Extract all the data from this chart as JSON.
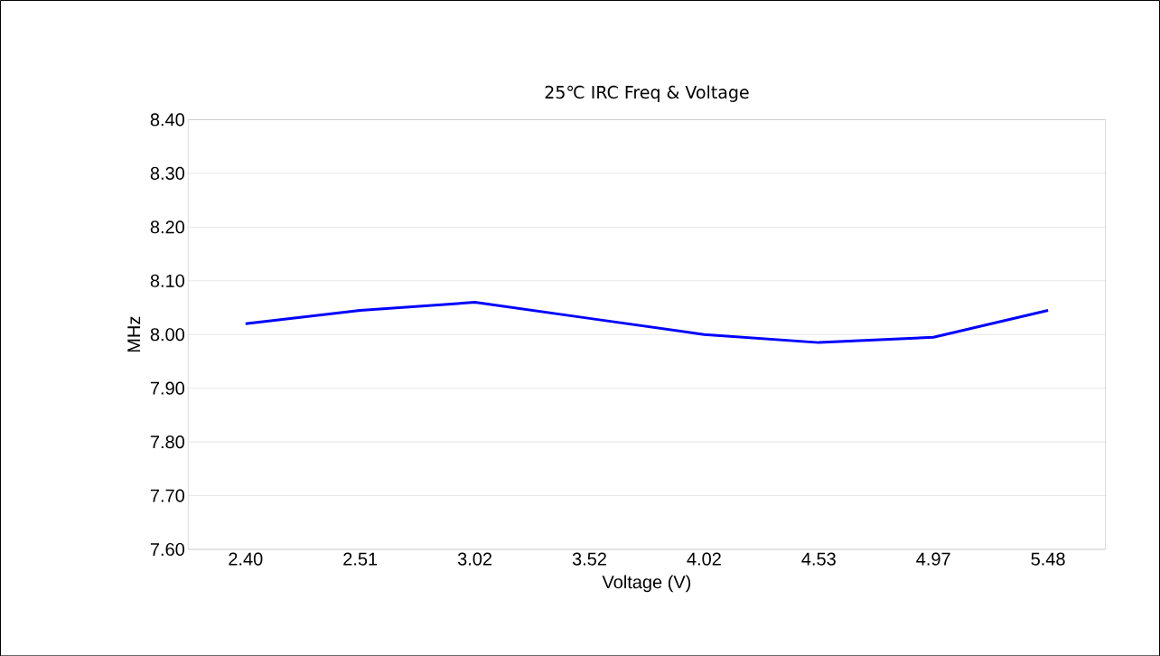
{
  "chart_data": {
    "type": "line",
    "title": "25℃ IRC Freq & Voltage",
    "xlabel": "Voltage (V)",
    "ylabel": "MHz",
    "categories": [
      "2.40",
      "2.51",
      "3.02",
      "3.52",
      "4.02",
      "4.53",
      "4.97",
      "5.48"
    ],
    "series": [
      {
        "color": "#0000ff",
        "values": [
          8.02,
          8.045,
          8.06,
          8.03,
          8.0,
          7.985,
          7.995,
          8.045
        ]
      }
    ],
    "ylim": [
      7.6,
      8.4
    ],
    "yticks": [
      {
        "value": 7.6,
        "label": "7.60"
      },
      {
        "value": 7.7,
        "label": "7.70"
      },
      {
        "value": 7.8,
        "label": "7.80"
      },
      {
        "value": 7.9,
        "label": "7.90"
      },
      {
        "value": 8.0,
        "label": "8.00"
      },
      {
        "value": 8.1,
        "label": "8.10"
      },
      {
        "value": 8.2,
        "label": "8.20"
      },
      {
        "value": 8.3,
        "label": "8.30"
      },
      {
        "value": 8.4,
        "label": "8.40"
      }
    ],
    "grid": "y",
    "marker": "none",
    "line_style": "solid"
  }
}
